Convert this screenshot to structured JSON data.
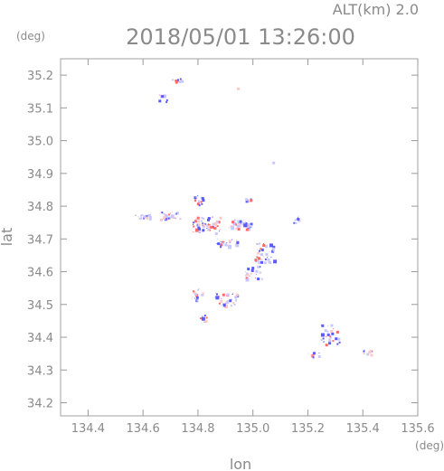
{
  "chart_data": {
    "type": "scatter",
    "title": "2018/05/01 13:26:00",
    "subtitle": "ALT(km) 2.0",
    "xlabel": "lon",
    "ylabel": "lat",
    "x_unit": "(deg)",
    "y_unit": "(deg)",
    "xlim": [
      134.3,
      135.6
    ],
    "ylim": [
      34.16,
      35.25
    ],
    "x_ticks": [
      "134.4",
      "134.6",
      "134.8",
      "135.0",
      "135.2",
      "135.4",
      "135.6"
    ],
    "y_ticks": [
      "34.2",
      "34.3",
      "34.4",
      "34.5",
      "34.6",
      "34.7",
      "34.8",
      "34.9",
      "35.0",
      "35.1",
      "35.2"
    ],
    "grid": false,
    "colors": {
      "positive": "#ff6b6b",
      "negative": "#5a5aff",
      "light_pos": "#ffc8c8",
      "light_neg": "#c8c8ff",
      "axis": "#999999"
    },
    "clusters": [
      {
        "lon": 134.72,
        "lat": 35.185,
        "spread_lon": 0.02,
        "spread_lat": 0.006,
        "n": 14
      },
      {
        "lon": 134.67,
        "lat": 35.13,
        "spread_lon": 0.015,
        "spread_lat": 0.012,
        "n": 12
      },
      {
        "lon": 134.6,
        "lat": 34.77,
        "spread_lon": 0.03,
        "spread_lat": 0.008,
        "n": 18
      },
      {
        "lon": 134.7,
        "lat": 34.772,
        "spread_lon": 0.04,
        "spread_lat": 0.012,
        "n": 30
      },
      {
        "lon": 134.8,
        "lat": 34.82,
        "spread_lon": 0.02,
        "spread_lat": 0.015,
        "n": 16
      },
      {
        "lon": 134.83,
        "lat": 34.745,
        "spread_lon": 0.05,
        "spread_lat": 0.025,
        "n": 60
      },
      {
        "lon": 134.95,
        "lat": 34.745,
        "spread_lon": 0.04,
        "spread_lat": 0.015,
        "n": 40
      },
      {
        "lon": 134.9,
        "lat": 34.69,
        "spread_lon": 0.04,
        "spread_lat": 0.012,
        "n": 25
      },
      {
        "lon": 134.98,
        "lat": 34.82,
        "spread_lon": 0.01,
        "spread_lat": 0.005,
        "n": 6
      },
      {
        "lon": 135.04,
        "lat": 34.66,
        "spread_lon": 0.035,
        "spread_lat": 0.03,
        "n": 45
      },
      {
        "lon": 135.0,
        "lat": 34.6,
        "spread_lon": 0.03,
        "spread_lat": 0.02,
        "n": 25
      },
      {
        "lon": 135.16,
        "lat": 34.76,
        "spread_lon": 0.015,
        "spread_lat": 0.012,
        "n": 8
      },
      {
        "lon": 134.8,
        "lat": 34.53,
        "spread_lon": 0.025,
        "spread_lat": 0.02,
        "n": 15
      },
      {
        "lon": 134.9,
        "lat": 34.515,
        "spread_lon": 0.04,
        "spread_lat": 0.02,
        "n": 35
      },
      {
        "lon": 134.82,
        "lat": 34.46,
        "spread_lon": 0.015,
        "spread_lat": 0.01,
        "n": 8
      },
      {
        "lon": 135.28,
        "lat": 34.41,
        "spread_lon": 0.035,
        "spread_lat": 0.03,
        "n": 30
      },
      {
        "lon": 135.22,
        "lat": 34.35,
        "spread_lon": 0.02,
        "spread_lat": 0.01,
        "n": 10
      },
      {
        "lon": 135.42,
        "lat": 34.355,
        "spread_lon": 0.02,
        "spread_lat": 0.008,
        "n": 12
      },
      {
        "lon": 134.94,
        "lat": 35.16,
        "spread_lon": 0.003,
        "spread_lat": 0.003,
        "n": 1
      },
      {
        "lon": 135.07,
        "lat": 34.935,
        "spread_lon": 0.003,
        "spread_lat": 0.003,
        "n": 1
      }
    ]
  }
}
